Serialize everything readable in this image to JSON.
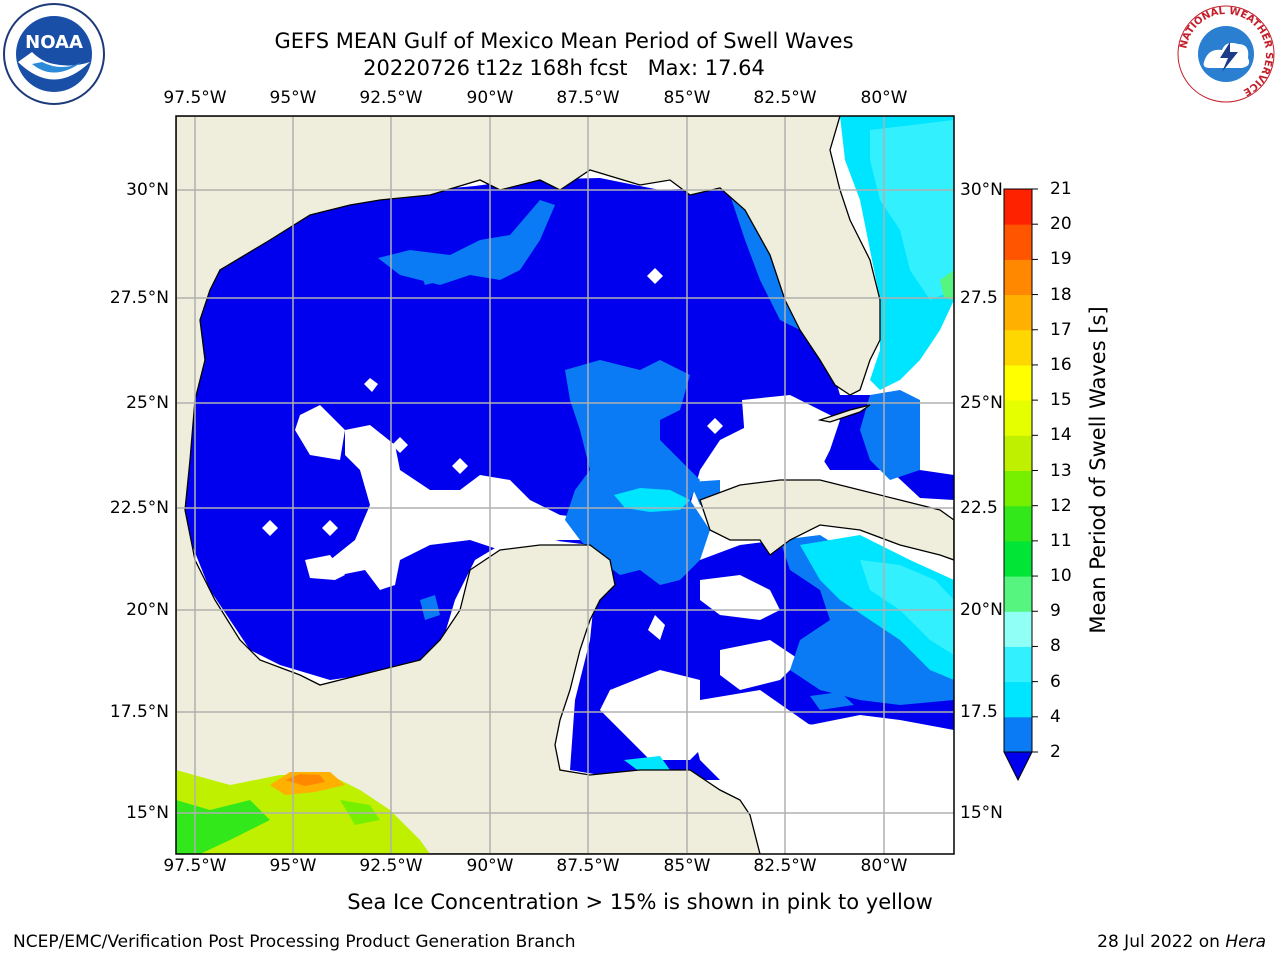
{
  "title": {
    "line1": "GEFS MEAN Gulf of Mexico Mean Period of Swell Waves",
    "line2": "20220726 t12z 168h fcst   Max: 17.64"
  },
  "logos": {
    "left_name": "noaa-logo",
    "left_text": "NOAA",
    "right_name": "nws-logo",
    "right_ring_text": "NATIONAL WEATHER SERVICE"
  },
  "map": {
    "lon_labels": [
      "97.5°W",
      "95°W",
      "92.5°W",
      "90°W",
      "87.5°W",
      "85°W",
      "82.5°W",
      "80°W"
    ],
    "lat_labels_left": [
      "30°N",
      "27.5°N",
      "25°N",
      "22.5°N",
      "20°N",
      "17.5°N",
      "15°N"
    ],
    "lat_labels_right": [
      "30°N",
      "27.5",
      "25°N",
      "22.5",
      "20°N",
      "17.5",
      "15°N"
    ],
    "colors": {
      "land": "#efeedc",
      "ocean_low": "#0000ee",
      "grid": "#b0b0b0"
    }
  },
  "colorbar": {
    "label": "Mean Period of Swell Waves [s]",
    "ticks": [
      "2",
      "4",
      "6",
      "8",
      "9",
      "10",
      "11",
      "12",
      "13",
      "14",
      "15",
      "16",
      "17",
      "18",
      "19",
      "20",
      "21"
    ],
    "colors": [
      "#0a7af5",
      "#00e5ff",
      "#33f0ff",
      "#90fff5",
      "#55f580",
      "#00e536",
      "#33e81a",
      "#77f000",
      "#bff000",
      "#e6ff00",
      "#ffff00",
      "#ffd700",
      "#ffb000",
      "#ff8800",
      "#ff5500",
      "#ff2200"
    ],
    "extend_color": "#0000ee"
  },
  "caption": "Sea Ice Concentration > 15% is shown in pink to yellow",
  "footer": {
    "left": "NCEP/EMC/Verification Post Processing Product Generation Branch",
    "right_prefix": "28 Jul 2022 on ",
    "right_host": "Hera"
  }
}
